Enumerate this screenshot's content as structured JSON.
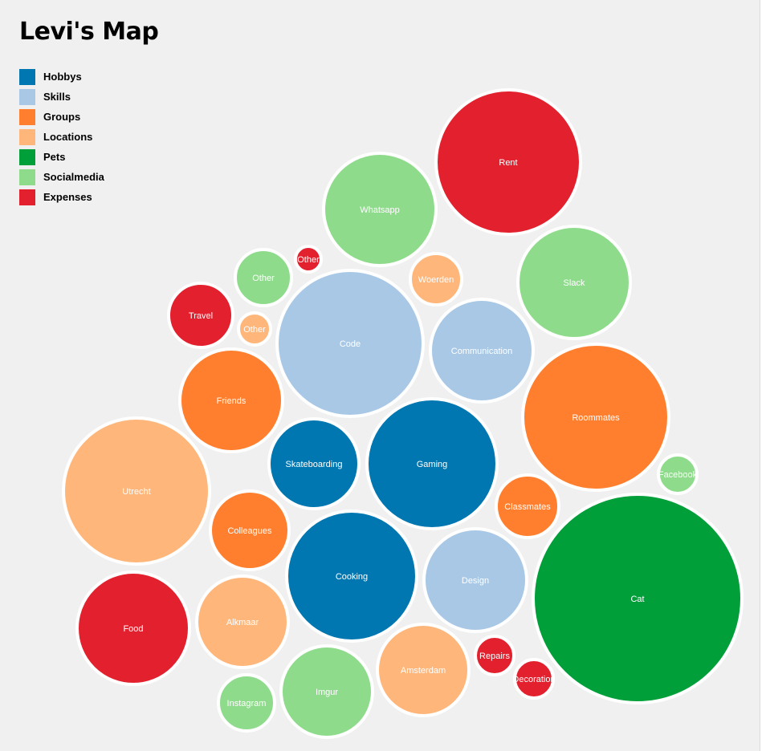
{
  "page": {
    "title": "Levi's Map"
  },
  "legend": [
    {
      "label": "Hobbys",
      "color": "#0077b1"
    },
    {
      "label": "Skills",
      "color": "#a8c8e6"
    },
    {
      "label": "Groups",
      "color": "#ff7f2e"
    },
    {
      "label": "Locations",
      "color": "#ffb67a"
    },
    {
      "label": "Pets",
      "color": "#009f3a"
    },
    {
      "label": "Socialmedia",
      "color": "#8fdb8c"
    },
    {
      "label": "Expenses",
      "color": "#e3202d"
    }
  ],
  "chart_data": {
    "type": "bubble",
    "title": "Levi's Map",
    "series": [
      {
        "name": "Hobbys",
        "color": "#0077b1"
      },
      {
        "name": "Skills",
        "color": "#a8c8e6"
      },
      {
        "name": "Groups",
        "color": "#ff7f2e"
      },
      {
        "name": "Locations",
        "color": "#ffb67a"
      },
      {
        "name": "Pets",
        "color": "#009f3a"
      },
      {
        "name": "Socialmedia",
        "color": "#8fdb8c"
      },
      {
        "name": "Expenses",
        "color": "#e3202d"
      }
    ],
    "bubbles": [
      {
        "label": "Rent",
        "group": "Expenses",
        "value": 8100
      },
      {
        "label": "Whatsapp",
        "group": "Socialmedia",
        "value": 4900
      },
      {
        "label": "Other",
        "group": "Expenses",
        "value": 256
      },
      {
        "label": "Other",
        "group": "Socialmedia",
        "value": 1225
      },
      {
        "label": "Woerden",
        "group": "Locations",
        "value": 1024
      },
      {
        "label": "Slack",
        "group": "Socialmedia",
        "value": 4900
      },
      {
        "label": "Travel",
        "group": "Expenses",
        "value": 1600
      },
      {
        "label": "Other",
        "group": "Locations",
        "value": 400
      },
      {
        "label": "Code",
        "group": "Skills",
        "value": 8281
      },
      {
        "label": "Communication",
        "group": "Skills",
        "value": 4096
      },
      {
        "label": "Friends",
        "group": "Groups",
        "value": 4096
      },
      {
        "label": "Roommates",
        "group": "Groups",
        "value": 8281
      },
      {
        "label": "Skateboarding",
        "group": "Hobbys",
        "value": 3136
      },
      {
        "label": "Gaming",
        "group": "Hobbys",
        "value": 6561
      },
      {
        "label": "Utrecht",
        "group": "Locations",
        "value": 8281
      },
      {
        "label": "Facebook",
        "group": "Socialmedia",
        "value": 576
      },
      {
        "label": "Classmates",
        "group": "Groups",
        "value": 1521
      },
      {
        "label": "Colleagues",
        "group": "Groups",
        "value": 2401
      },
      {
        "label": "Cooking",
        "group": "Hobbys",
        "value": 6561
      },
      {
        "label": "Design",
        "group": "Skills",
        "value": 4096
      },
      {
        "label": "Cat",
        "group": "Pets",
        "value": 16900
      },
      {
        "label": "Food",
        "group": "Expenses",
        "value": 4900
      },
      {
        "label": "Alkmaar",
        "group": "Locations",
        "value": 3249
      },
      {
        "label": "Amsterdam",
        "group": "Locations",
        "value": 3249
      },
      {
        "label": "Repairs",
        "group": "Expenses",
        "value": 576
      },
      {
        "label": "Decoration",
        "group": "Expenses",
        "value": 576
      },
      {
        "label": "Instagram",
        "group": "Socialmedia",
        "value": 1225
      },
      {
        "label": "Imgur",
        "group": "Socialmedia",
        "value": 3249
      }
    ]
  }
}
